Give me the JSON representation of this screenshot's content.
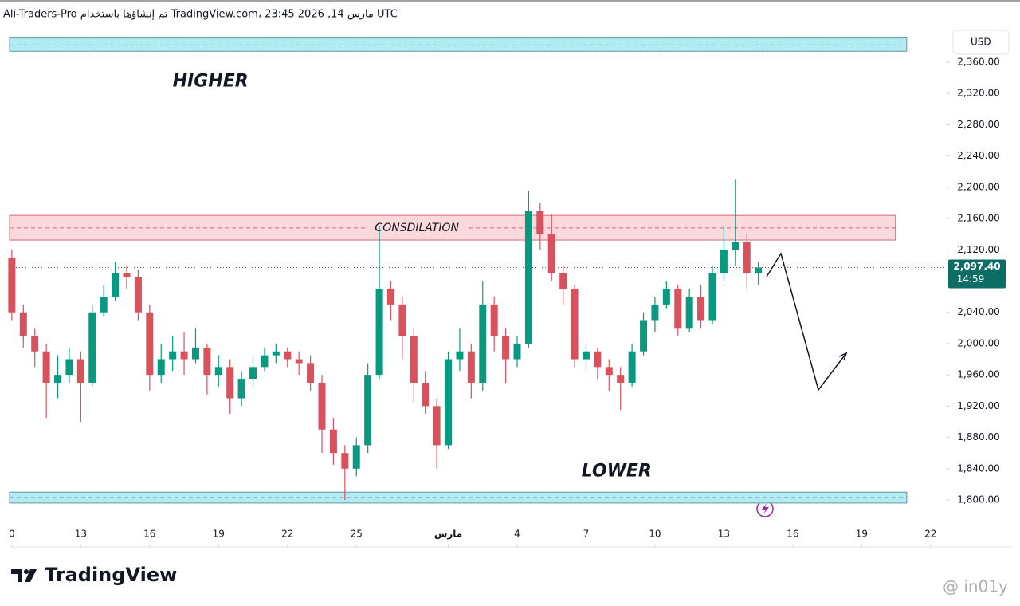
{
  "header": "Ali-Traders-Pro تم إنشاؤها باستخدام TradingView.com، 23:45 2026 ,14 مارس UTC",
  "brand": "TradingView",
  "watermark": "@ in01y",
  "chart_data": {
    "type": "candlestick",
    "currency": "USD",
    "up_color": "#089981",
    "down_color": "#d9515d",
    "ylim": [
      1780,
      2400
    ],
    "yticks": [
      {
        "value": 1800,
        "label": "1,800.00"
      },
      {
        "value": 1840,
        "label": "1,840.00"
      },
      {
        "value": 1880,
        "label": "1,880.00"
      },
      {
        "value": 1920,
        "label": "1,920.00"
      },
      {
        "value": 1960,
        "label": "1,960.00"
      },
      {
        "value": 2000,
        "label": "2,000.00"
      },
      {
        "value": 2040,
        "label": "2,040.00"
      },
      {
        "value": 2080,
        "label": "2,080.00"
      },
      {
        "value": 2120,
        "label": "2,120.00"
      },
      {
        "value": 2160,
        "label": "2,160.00"
      },
      {
        "value": 2200,
        "label": "2,200.00"
      },
      {
        "value": 2240,
        "label": "2,240.00"
      },
      {
        "value": 2280,
        "label": "2,280.00"
      },
      {
        "value": 2320,
        "label": "2,320.00"
      },
      {
        "value": 2360,
        "label": "2,360.00"
      }
    ],
    "xlim": [
      -0.1,
      40.7
    ],
    "xticks": [
      {
        "value": 0,
        "label": "0"
      },
      {
        "value": 3,
        "label": "13"
      },
      {
        "value": 6,
        "label": "16"
      },
      {
        "value": 9,
        "label": "19"
      },
      {
        "value": 12,
        "label": "22"
      },
      {
        "value": 15,
        "label": "25"
      },
      {
        "value": 19,
        "label": "مارس"
      },
      {
        "value": 22,
        "label": "4"
      },
      {
        "value": 25,
        "label": "7"
      },
      {
        "value": 28,
        "label": "10"
      },
      {
        "value": 31,
        "label": "13"
      },
      {
        "value": 34,
        "label": "16"
      },
      {
        "value": 37,
        "label": "19"
      },
      {
        "value": 40,
        "label": "22"
      }
    ],
    "x": [
      0,
      0.5,
      1,
      1.5,
      2,
      2.5,
      3,
      3.5,
      4,
      4.5,
      5,
      5.5,
      6,
      6.5,
      7,
      7.5,
      8,
      8.5,
      9,
      9.5,
      10,
      10.5,
      11,
      11.5,
      12,
      12.5,
      13,
      13.5,
      14,
      14.5,
      15,
      15.5,
      16,
      16.5,
      17,
      17.5,
      18,
      18.5,
      19,
      19.5,
      20,
      20.5,
      21,
      21.5,
      22,
      22.5,
      23,
      23.5,
      24,
      24.5,
      25,
      25.5,
      26,
      26.5,
      27,
      27.5,
      28,
      28.5,
      29,
      29.5,
      30,
      30.5,
      31,
      31.5,
      32,
      32.5
    ],
    "open": [
      2110,
      2040,
      2010,
      1990,
      1950,
      1960,
      1980,
      1950,
      2040,
      2060,
      2090,
      2085,
      2040,
      1960,
      1980,
      1990,
      1980,
      1995,
      1960,
      1970,
      1930,
      1955,
      1970,
      1985,
      1990,
      1980,
      1975,
      1950,
      1890,
      1860,
      1840,
      1870,
      1960,
      2070,
      2050,
      2010,
      1950,
      1920,
      1870,
      1980,
      1990,
      1950,
      2050,
      2010,
      1980,
      2000,
      2170,
      2140,
      2090,
      2070,
      1980,
      1990,
      1970,
      1960,
      1950,
      1990,
      2030,
      2050,
      2070,
      2020,
      2060,
      2030,
      2090,
      2120,
      2130,
      2090
    ],
    "high": [
      2120,
      2050,
      2020,
      2000,
      1985,
      1995,
      1990,
      2050,
      2075,
      2105,
      2100,
      2095,
      2050,
      2000,
      2010,
      2015,
      2020,
      2000,
      1985,
      1980,
      1965,
      1985,
      1995,
      2000,
      1995,
      1990,
      1985,
      1960,
      1905,
      1870,
      1880,
      1975,
      2150,
      2080,
      2060,
      2020,
      1965,
      1930,
      1990,
      2020,
      2000,
      2080,
      2060,
      2020,
      2010,
      2195,
      2180,
      2165,
      2100,
      2075,
      2000,
      1995,
      1980,
      1970,
      2000,
      2040,
      2060,
      2080,
      2075,
      2070,
      2075,
      2100,
      2150,
      2210,
      2140,
      2105
    ],
    "low": [
      2030,
      1995,
      1970,
      1905,
      1930,
      1950,
      1900,
      1945,
      2035,
      2055,
      2070,
      2030,
      1940,
      1950,
      1965,
      1960,
      1975,
      1935,
      1945,
      1910,
      1920,
      1945,
      1965,
      1975,
      1970,
      1960,
      1940,
      1860,
      1845,
      1800,
      1830,
      1860,
      1955,
      2030,
      1980,
      1925,
      1910,
      1840,
      1865,
      1965,
      1930,
      1940,
      1990,
      1950,
      1970,
      1995,
      2120,
      2080,
      2050,
      1970,
      1965,
      1955,
      1940,
      1915,
      1945,
      1985,
      2015,
      2045,
      2010,
      2015,
      2020,
      2025,
      2080,
      2100,
      2070,
      2075
    ],
    "close": [
      2040,
      2010,
      1990,
      1950,
      1960,
      1980,
      1950,
      2040,
      2060,
      2090,
      2085,
      2040,
      1960,
      1980,
      1990,
      1980,
      1995,
      1960,
      1970,
      1930,
      1955,
      1970,
      1985,
      1990,
      1980,
      1975,
      1950,
      1890,
      1860,
      1840,
      1870,
      1960,
      2070,
      2050,
      2010,
      1950,
      1920,
      1870,
      1980,
      1990,
      1950,
      2050,
      2010,
      1980,
      2000,
      2170,
      2140,
      2090,
      2070,
      1980,
      1990,
      1970,
      1960,
      1950,
      1990,
      2030,
      2050,
      2070,
      2020,
      2060,
      2030,
      2090,
      2120,
      2130,
      2090,
      2097.4
    ],
    "last_price": 2097.4,
    "last_price_label": "2,097.40",
    "countdown": "14:59",
    "zones": [
      {
        "low": 2374,
        "high": 2391,
        "line": 2382,
        "end": 38.96,
        "color": "#b2ebf2",
        "edge": "#5b9aa0"
      },
      {
        "low": 2132.5,
        "high": 2164,
        "line": 2148,
        "end": 38.47,
        "color": "#fbd9dd",
        "edge": "#c9707a",
        "label": "CONSDILATION"
      },
      {
        "low": 1796,
        "high": 1810,
        "line": 1803,
        "end": 38.96,
        "color": "#b2ebf2",
        "edge": "#5b9aa0"
      }
    ],
    "annotations": [
      {
        "text": "HIGHER",
        "x": 7,
        "y": 2335
      },
      {
        "text": "LOWER",
        "x": 24.8,
        "y": 1836
      }
    ]
  }
}
